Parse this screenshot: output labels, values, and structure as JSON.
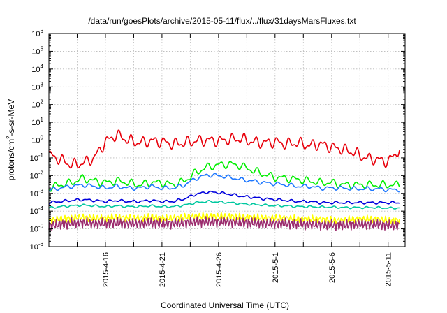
{
  "chart_data": {
    "type": "line",
    "title": "/data/run/goesPlots/archive/2015-05-11/flux/../flux/31daysMarsFluxes.txt",
    "xlabel": "Coordinated Universal Time (UTC)",
    "ylabel_prefix": "protons/cm",
    "ylabel_sup": "2",
    "ylabel_suffix": "-s-sr-MeV",
    "yscale": "log",
    "ylim": [
      1e-06,
      1000000
    ],
    "y_ticks": [
      {
        "base": "10",
        "exp": "6",
        "value": 1000000
      },
      {
        "base": "10",
        "exp": "5",
        "value": 100000
      },
      {
        "base": "10",
        "exp": "4",
        "value": 10000
      },
      {
        "base": "10",
        "exp": "3",
        "value": 1000
      },
      {
        "base": "10",
        "exp": "2",
        "value": 100
      },
      {
        "base": "10",
        "exp": "1",
        "value": 10
      },
      {
        "base": "10",
        "exp": "0",
        "value": 1
      },
      {
        "base": "10",
        "exp": "-1",
        "value": 0.1
      },
      {
        "base": "10",
        "exp": "-2",
        "value": 0.01
      },
      {
        "base": "10",
        "exp": "-3",
        "value": 0.001
      },
      {
        "base": "10",
        "exp": "-4",
        "value": 0.0001
      },
      {
        "base": "10",
        "exp": "-5",
        "value": 1e-05
      },
      {
        "base": "10",
        "exp": "-6",
        "value": 1e-06
      }
    ],
    "xlim": [
      "2015-04-11",
      "2015-05-12.5"
    ],
    "x_ticks": [
      "2015-4-16",
      "2015-4-21",
      "2015-4-26",
      "2015-5-1",
      "2015-5-6",
      "2015-5-11"
    ],
    "x_gridlines": [
      "2015-4-13.5",
      "2015-4-16",
      "2015-4-18.5",
      "2015-4-21",
      "2015-4-23.5",
      "2015-4-26",
      "2015-4-28.5",
      "2015-5-1",
      "2015-5-3.5",
      "2015-5-6",
      "2015-5-8.5",
      "2015-5-11"
    ],
    "grid": true,
    "legend": "none",
    "series": [
      {
        "color": "#e8000b",
        "x": [
          "2015-04-11",
          "2015-04-12",
          "2015-04-13",
          "2015-04-14",
          "2015-04-15",
          "2015-04-16",
          "2015-04-17",
          "2015-04-18",
          "2015-04-19",
          "2015-04-20",
          "2015-04-21",
          "2015-04-22",
          "2015-04-23",
          "2015-04-24",
          "2015-04-25",
          "2015-04-26",
          "2015-04-27",
          "2015-04-28",
          "2015-04-29",
          "2015-04-30",
          "2015-05-01",
          "2015-05-02",
          "2015-05-03",
          "2015-05-04",
          "2015-05-05",
          "2015-05-06",
          "2015-05-07",
          "2015-05-08",
          "2015-05-09",
          "2015-05-10",
          "2015-05-11",
          "2015-05-12"
        ],
        "y": [
          0.15,
          0.08,
          0.04,
          0.05,
          0.1,
          0.8,
          2.0,
          1.0,
          0.7,
          0.9,
          0.8,
          0.6,
          0.7,
          0.9,
          1.0,
          0.9,
          1.1,
          1.2,
          0.8,
          0.7,
          0.8,
          0.6,
          0.7,
          0.5,
          0.6,
          0.4,
          0.3,
          0.2,
          0.1,
          0.08,
          0.06,
          0.3
        ]
      },
      {
        "color": "#00ee00",
        "x": [
          "2015-04-11",
          "2015-04-12",
          "2015-04-13",
          "2015-04-14",
          "2015-04-15",
          "2015-04-16",
          "2015-04-17",
          "2015-04-18",
          "2015-04-19",
          "2015-04-20",
          "2015-04-21",
          "2015-04-22",
          "2015-04-23",
          "2015-04-24",
          "2015-04-25",
          "2015-04-26",
          "2015-04-27",
          "2015-04-28",
          "2015-04-29",
          "2015-04-30",
          "2015-05-01",
          "2015-05-02",
          "2015-05-03",
          "2015-05-04",
          "2015-05-05",
          "2015-05-06",
          "2015-05-07",
          "2015-05-08",
          "2015-05-09",
          "2015-05-10",
          "2015-05-11",
          "2015-05-12"
        ],
        "y": [
          0.002,
          0.003,
          0.004,
          0.007,
          0.005,
          0.004,
          0.005,
          0.004,
          0.003,
          0.004,
          0.004,
          0.003,
          0.005,
          0.015,
          0.03,
          0.04,
          0.045,
          0.035,
          0.02,
          0.012,
          0.008,
          0.007,
          0.006,
          0.005,
          0.004,
          0.004,
          0.003,
          0.003,
          0.003,
          0.003,
          0.003,
          0.003
        ]
      },
      {
        "color": "#1e78ff",
        "x": [
          "2015-04-11",
          "2015-04-12",
          "2015-04-13",
          "2015-04-14",
          "2015-04-15",
          "2015-04-16",
          "2015-04-17",
          "2015-04-18",
          "2015-04-19",
          "2015-04-20",
          "2015-04-21",
          "2015-04-22",
          "2015-04-23",
          "2015-04-24",
          "2015-04-25",
          "2015-04-26",
          "2015-04-27",
          "2015-04-28",
          "2015-04-29",
          "2015-04-30",
          "2015-05-01",
          "2015-05-02",
          "2015-05-03",
          "2015-05-04",
          "2015-05-05",
          "2015-05-06",
          "2015-05-07",
          "2015-05-08",
          "2015-05-09",
          "2015-05-10",
          "2015-05-11",
          "2015-05-12"
        ],
        "y": [
          0.0015,
          0.002,
          0.0025,
          0.003,
          0.0025,
          0.002,
          0.0025,
          0.002,
          0.002,
          0.0025,
          0.002,
          0.002,
          0.003,
          0.007,
          0.011,
          0.01,
          0.008,
          0.006,
          0.005,
          0.004,
          0.0035,
          0.003,
          0.0025,
          0.0025,
          0.002,
          0.002,
          0.002,
          0.0018,
          0.0018,
          0.0018,
          0.0016,
          0.0016
        ]
      },
      {
        "color": "#0000dd",
        "x": [
          "2015-04-11",
          "2015-04-12",
          "2015-04-13",
          "2015-04-14",
          "2015-04-15",
          "2015-04-16",
          "2015-04-17",
          "2015-04-18",
          "2015-04-19",
          "2015-04-20",
          "2015-04-21",
          "2015-04-22",
          "2015-04-23",
          "2015-04-24",
          "2015-04-25",
          "2015-04-26",
          "2015-04-27",
          "2015-04-28",
          "2015-04-29",
          "2015-04-30",
          "2015-05-01",
          "2015-05-02",
          "2015-05-03",
          "2015-05-04",
          "2015-05-05",
          "2015-05-06",
          "2015-05-07",
          "2015-05-08",
          "2015-05-09",
          "2015-05-10",
          "2015-05-11",
          "2015-05-12"
        ],
        "y": [
          0.0003,
          0.00035,
          0.0004,
          0.00045,
          0.0004,
          0.00035,
          0.0004,
          0.00035,
          0.00035,
          0.0004,
          0.00035,
          0.00035,
          0.0005,
          0.0009,
          0.0012,
          0.0011,
          0.0009,
          0.0007,
          0.0006,
          0.0005,
          0.00045,
          0.0004,
          0.00035,
          0.00035,
          0.0003,
          0.0003,
          0.0003,
          0.0003,
          0.0003,
          0.0003,
          0.0003,
          0.0003
        ]
      },
      {
        "color": "#00c8a0",
        "x": [
          "2015-04-11",
          "2015-04-12",
          "2015-04-13",
          "2015-04-14",
          "2015-04-15",
          "2015-04-16",
          "2015-04-17",
          "2015-04-18",
          "2015-04-19",
          "2015-04-20",
          "2015-04-21",
          "2015-04-22",
          "2015-04-23",
          "2015-04-24",
          "2015-04-25",
          "2015-04-26",
          "2015-04-27",
          "2015-04-28",
          "2015-04-29",
          "2015-04-30",
          "2015-05-01",
          "2015-05-02",
          "2015-05-03",
          "2015-05-04",
          "2015-05-05",
          "2015-05-06",
          "2015-05-07",
          "2015-05-08",
          "2015-05-09",
          "2015-05-10",
          "2015-05-11",
          "2015-05-12"
        ],
        "y": [
          0.00015,
          0.00018,
          0.0002,
          0.00022,
          0.0002,
          0.00018,
          0.0002,
          0.00018,
          0.00018,
          0.0002,
          0.00018,
          0.00018,
          0.00022,
          0.0003,
          0.00035,
          0.00033,
          0.0003,
          0.00026,
          0.00024,
          0.00022,
          0.0002,
          0.0002,
          0.00018,
          0.00018,
          0.00017,
          0.00017,
          0.00016,
          0.00016,
          0.00016,
          0.00016,
          0.00015,
          0.00015
        ]
      },
      {
        "color": "#ffff00",
        "x": [
          "2015-04-11",
          "2015-04-12",
          "2015-04-13",
          "2015-04-14",
          "2015-04-15",
          "2015-04-16",
          "2015-04-17",
          "2015-04-18",
          "2015-04-19",
          "2015-04-20",
          "2015-04-21",
          "2015-04-22",
          "2015-04-23",
          "2015-04-24",
          "2015-04-25",
          "2015-04-26",
          "2015-04-27",
          "2015-04-28",
          "2015-04-29",
          "2015-04-30",
          "2015-05-01",
          "2015-05-02",
          "2015-05-03",
          "2015-05-04",
          "2015-05-05",
          "2015-05-06",
          "2015-05-07",
          "2015-05-08",
          "2015-05-09",
          "2015-05-10",
          "2015-05-11",
          "2015-05-12"
        ],
        "y": [
          3e-05,
          3.5e-05,
          4e-05,
          4.5e-05,
          4e-05,
          4e-05,
          4.5e-05,
          4e-05,
          4e-05,
          4.5e-05,
          4e-05,
          4e-05,
          4.5e-05,
          5e-05,
          5e-05,
          5e-05,
          5e-05,
          4.5e-05,
          4.5e-05,
          4e-05,
          4e-05,
          4e-05,
          3.5e-05,
          3.5e-05,
          3.5e-05,
          3e-05,
          3e-05,
          3.5e-05,
          3.5e-05,
          3.5e-05,
          3e-05,
          3e-05
        ]
      },
      {
        "color": "#9b2d6e",
        "x": [
          "2015-04-11",
          "2015-04-12",
          "2015-04-13",
          "2015-04-14",
          "2015-04-15",
          "2015-04-16",
          "2015-04-17",
          "2015-04-18",
          "2015-04-19",
          "2015-04-20",
          "2015-04-21",
          "2015-04-22",
          "2015-04-23",
          "2015-04-24",
          "2015-04-25",
          "2015-04-26",
          "2015-04-27",
          "2015-04-28",
          "2015-04-29",
          "2015-04-30",
          "2015-05-01",
          "2015-05-02",
          "2015-05-03",
          "2015-05-04",
          "2015-05-05",
          "2015-05-06",
          "2015-05-07",
          "2015-05-08",
          "2015-05-09",
          "2015-05-10",
          "2015-05-11",
          "2015-05-12"
        ],
        "y": [
          1.5e-05,
          1.8e-05,
          2e-05,
          2.2e-05,
          2e-05,
          2e-05,
          2.2e-05,
          2e-05,
          2e-05,
          2.2e-05,
          2e-05,
          2e-05,
          2.2e-05,
          2.5e-05,
          2.5e-05,
          2.5e-05,
          2.4e-05,
          2.3e-05,
          2.2e-05,
          2e-05,
          2e-05,
          2e-05,
          1.8e-05,
          1.8e-05,
          1.7e-05,
          1.6e-05,
          1.6e-05,
          1.8e-05,
          1.8e-05,
          1.8e-05,
          1.6e-05,
          1.6e-05
        ]
      }
    ]
  }
}
